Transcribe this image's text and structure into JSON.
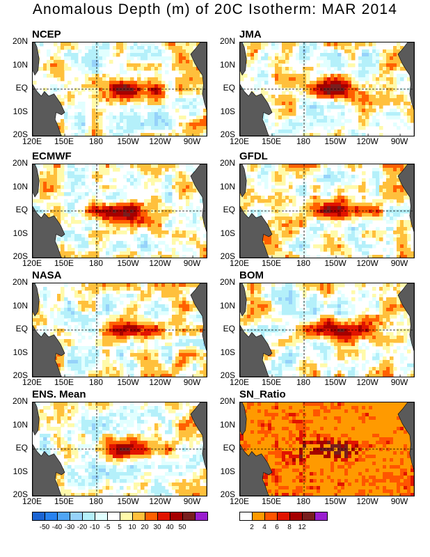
{
  "title": "Anomalous Depth (m) of 20C Isotherm: MAR 2014",
  "lat_labels": [
    "20N",
    "10N",
    "EQ",
    "10S",
    "20S"
  ],
  "lon_labels": [
    "120E",
    "150E",
    "180",
    "150W",
    "120W",
    "90W"
  ],
  "chart_data": [
    {
      "type": "heatmap",
      "title": "NCEP",
      "field": "depth_anomaly_m",
      "peak_lon_w": 145,
      "peak_level": 40
    },
    {
      "type": "heatmap",
      "title": "JMA",
      "field": "depth_anomaly_m",
      "peak_lon_w": 150,
      "peak_level": 50
    },
    {
      "type": "heatmap",
      "title": "ECMWF",
      "field": "depth_anomaly_m",
      "peak_lon_w": 155,
      "peak_level": 50
    },
    {
      "type": "heatmap",
      "title": "GFDL",
      "field": "depth_anomaly_m",
      "peak_lon_w": 145,
      "peak_level": 40
    },
    {
      "type": "heatmap",
      "title": "NASA",
      "field": "depth_anomaly_m",
      "peak_lon_w": 145,
      "peak_level": 40
    },
    {
      "type": "heatmap",
      "title": "BOM",
      "field": "depth_anomaly_m",
      "peak_lon_w": 150,
      "peak_level": 50
    },
    {
      "type": "heatmap",
      "title": "ENS. Mean",
      "field": "depth_anomaly_m",
      "peak_lon_w": 145,
      "peak_level": 40
    },
    {
      "type": "heatmap",
      "title": "SN_Ratio",
      "field": "signal_to_noise",
      "peak_lon_w": 150,
      "peak_level": 12
    }
  ],
  "colorbar_anomaly": {
    "ticks": [
      "-50",
      "-40",
      "-30",
      "-20",
      "-10",
      "-5",
      "5",
      "10",
      "20",
      "30",
      "40",
      "50"
    ],
    "colors": [
      "#1c64d2",
      "#2882f0",
      "#50a5f5",
      "#96d2fa",
      "#b4f0fa",
      "#e1ffff",
      "#ffffff",
      "#fffaaa",
      "#ffc03c",
      "#ff6000",
      "#e11400",
      "#a50000",
      "#781e1e",
      "#9a1ecf"
    ]
  },
  "colorbar_snr": {
    "ticks": [
      "2",
      "4",
      "6",
      "8",
      "12"
    ],
    "colors": [
      "#ffffff",
      "#ff9a00",
      "#ff5500",
      "#e11400",
      "#a50000",
      "#781e1e",
      "#9a1ecf"
    ]
  },
  "land_color": "#5a5a5a"
}
